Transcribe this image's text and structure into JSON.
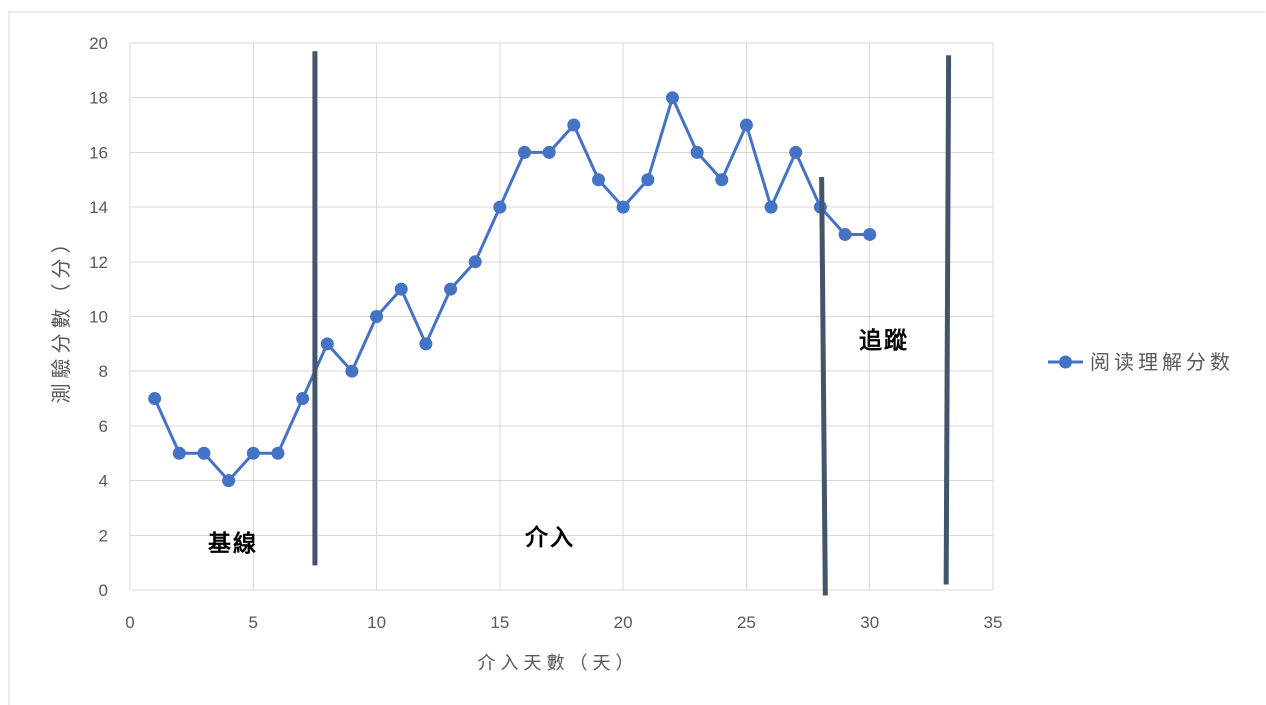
{
  "colors": {
    "frame": "#D9D9D9",
    "grid": "#D9D9D9",
    "text": "#595959",
    "phase_label": "#000000"
  },
  "chart_data": {
    "type": "line",
    "xlabel": "介入天數（天）",
    "ylabel": "測驗分數（分）",
    "xlim": [
      0,
      35
    ],
    "ylim": [
      0,
      20
    ],
    "xticks": [
      0,
      5,
      10,
      15,
      20,
      25,
      30,
      35
    ],
    "yticks": [
      0,
      2,
      4,
      6,
      8,
      10,
      12,
      14,
      16,
      18,
      20
    ],
    "grid": true,
    "legend_position": "right",
    "series": [
      {
        "name": "阅读理解分数",
        "color": "#4472C4",
        "marker": "circle",
        "x": [
          1,
          2,
          3,
          4,
          5,
          6,
          7,
          8,
          9,
          10,
          11,
          12,
          13,
          14,
          15,
          16,
          17,
          18,
          19,
          20,
          21,
          22,
          23,
          24,
          25,
          26,
          27,
          28,
          29,
          30
        ],
        "y": [
          7,
          5,
          5,
          4,
          5,
          5,
          7,
          9,
          8,
          10,
          11,
          9,
          11,
          12,
          14,
          16,
          16,
          17,
          15,
          14,
          15,
          18,
          16,
          15,
          17,
          14,
          16,
          14,
          13,
          13
        ]
      }
    ],
    "phase_lines": {
      "color": "#44546A",
      "lines": [
        {
          "x": [
            7.5,
            7.5
          ],
          "y": [
            19.7,
            0.9
          ]
        },
        {
          "x": [
            28.05,
            28.2
          ],
          "y": [
            15.1,
            -0.2
          ]
        },
        {
          "x": [
            33.2,
            33.1
          ],
          "y": [
            19.55,
            0.2
          ]
        }
      ]
    },
    "phase_labels": [
      "基線",
      "介入",
      "追蹤"
    ]
  }
}
